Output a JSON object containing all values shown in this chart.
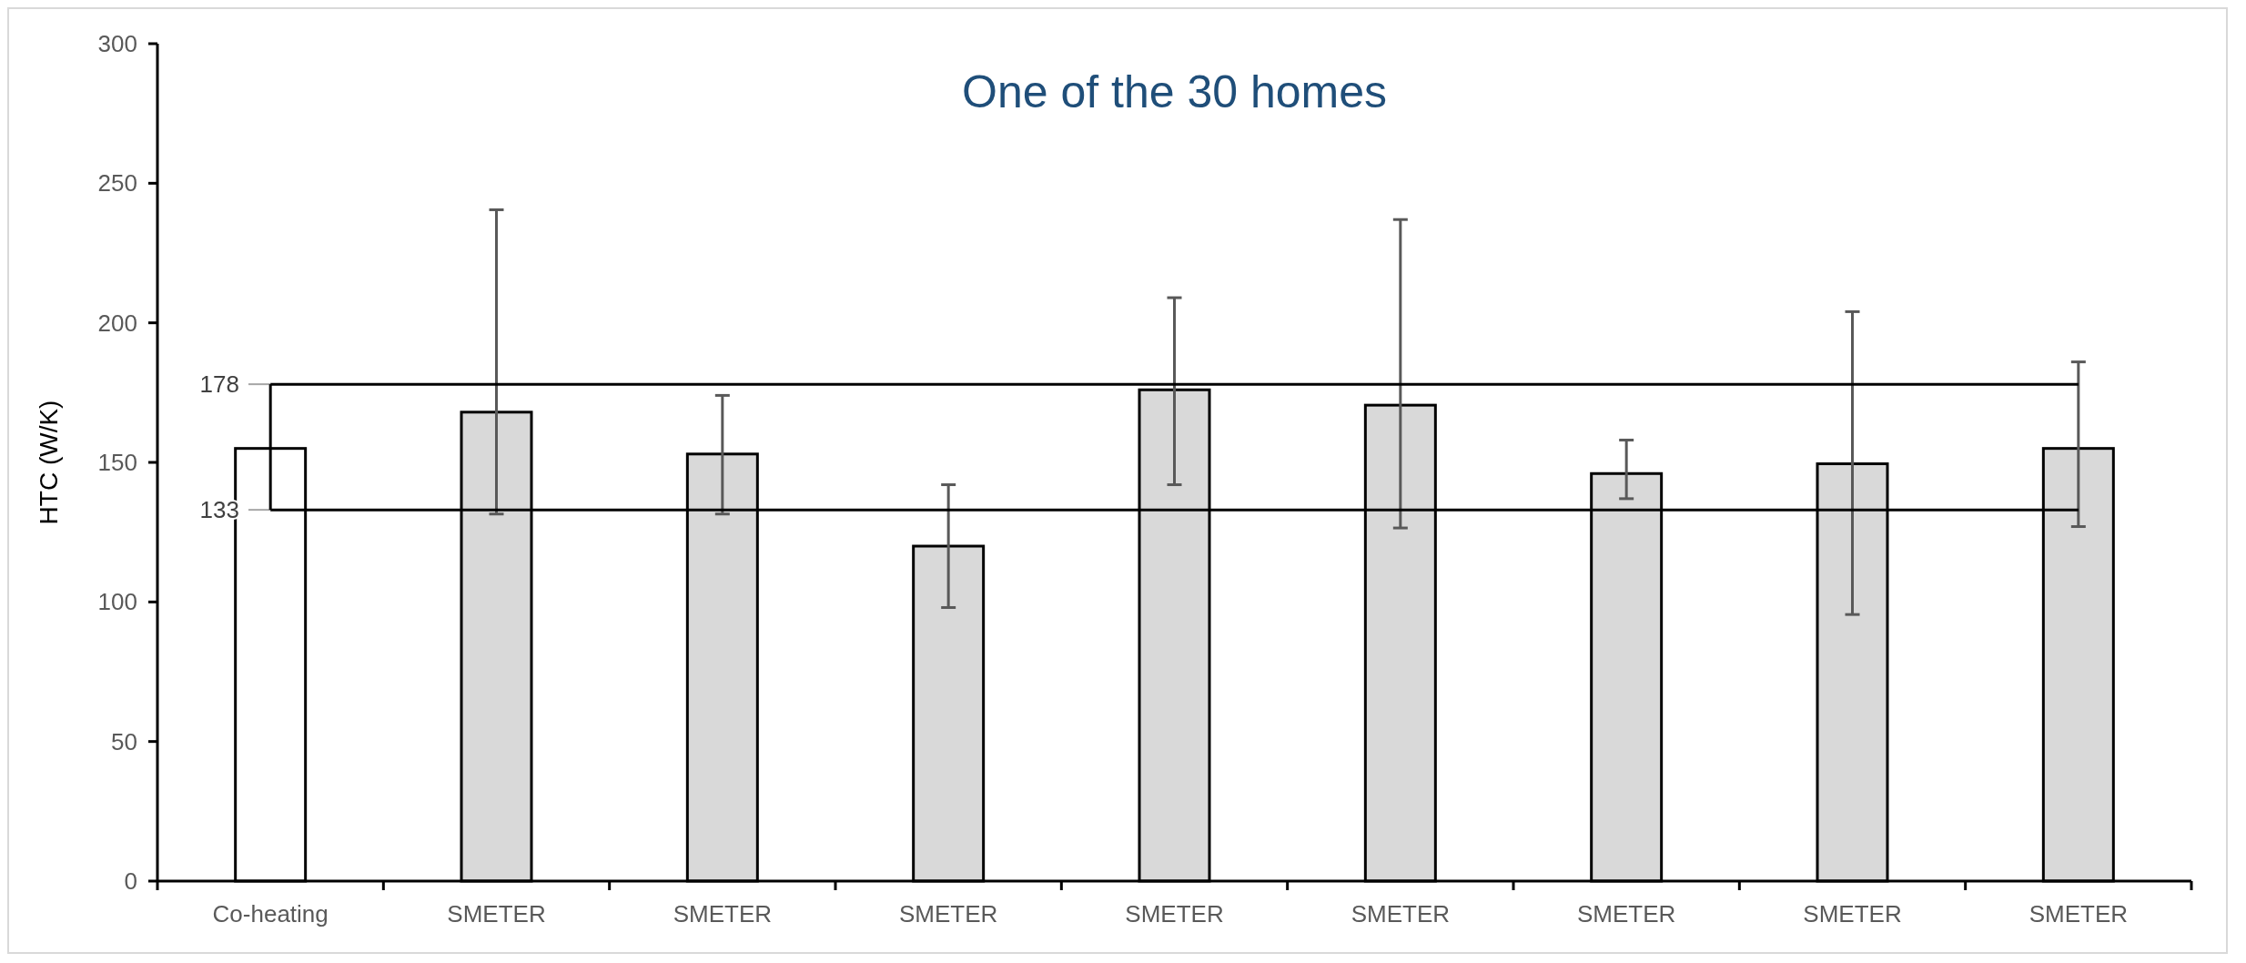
{
  "chart_data": {
    "type": "bar",
    "title": "One of the 30 homes",
    "ylabel": "HTC (W/K)",
    "categories": [
      "Co-heating",
      "SMETER",
      "SMETER",
      "SMETER",
      "SMETER",
      "SMETER",
      "SMETER",
      "SMETER",
      "SMETER"
    ],
    "values": [
      155,
      168,
      153,
      120,
      176,
      170.5,
      146,
      149.5,
      155
    ],
    "colors": [
      "#ffffff",
      "#d9d9d9",
      "#d9d9d9",
      "#d9d9d9",
      "#d9d9d9",
      "#d9d9d9",
      "#d9d9d9",
      "#d9d9d9",
      "#d9d9d9"
    ],
    "errors": [
      null,
      [
        131.5,
        240.5
      ],
      [
        131.5,
        174
      ],
      [
        98,
        142
      ],
      [
        142,
        209
      ],
      [
        126.5,
        237
      ],
      [
        137,
        158
      ],
      [
        95.5,
        204
      ],
      [
        127,
        186
      ]
    ],
    "ylim": [
      0,
      300
    ],
    "yticks": [
      0,
      50,
      100,
      150,
      200,
      250,
      300
    ],
    "grid": false,
    "ref_lines": [
      {
        "axis": "y",
        "value": 178,
        "label": "178",
        "color": "#000000"
      },
      {
        "axis": "y",
        "value": 133,
        "label": "133",
        "color": "#000000"
      }
    ]
  }
}
